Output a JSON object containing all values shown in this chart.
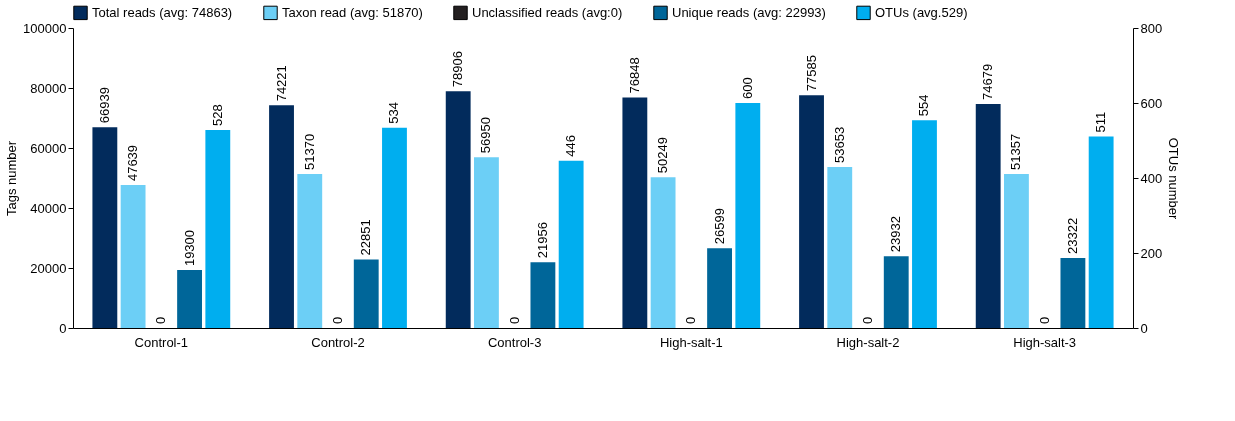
{
  "chart_data": {
    "type": "bar",
    "categories": [
      "Control-1",
      "Control-2",
      "Control-3",
      "High-salt-1",
      "High-salt-2",
      "High-salt-3"
    ],
    "ylabel": "Tags number",
    "y2label": "OTUs number",
    "ylim": [
      0,
      100000
    ],
    "yticks": [
      0,
      20000,
      40000,
      60000,
      80000,
      100000
    ],
    "y2lim": [
      0,
      800
    ],
    "y2ticks": [
      0,
      200,
      400,
      600,
      800
    ],
    "data_labels": true,
    "legend": "top",
    "grid": false,
    "series": [
      {
        "name": "Total reads (avg: 74863)",
        "color": "#022b5c",
        "values": [
          66939,
          74221,
          78906,
          76848,
          77585,
          74679
        ]
      },
      {
        "name": "Taxon read (avg: 51870)",
        "color": "#6ccff6",
        "values": [
          47639,
          51370,
          56950,
          50249,
          53653,
          51357
        ]
      },
      {
        "name": "Unclassified reads (avg:0)",
        "color": "#231f20",
        "values": [
          0,
          0,
          0,
          0,
          0,
          0
        ]
      },
      {
        "name": "Unique reads (avg: 22993)",
        "color": "#006699",
        "values": [
          19300,
          22851,
          21956,
          26599,
          23932,
          23322
        ]
      },
      {
        "name": "OTUs (avg.529)",
        "color": "#00aeef",
        "axis": "y2",
        "values": [
          528,
          534,
          446,
          600,
          554,
          511
        ]
      }
    ]
  }
}
